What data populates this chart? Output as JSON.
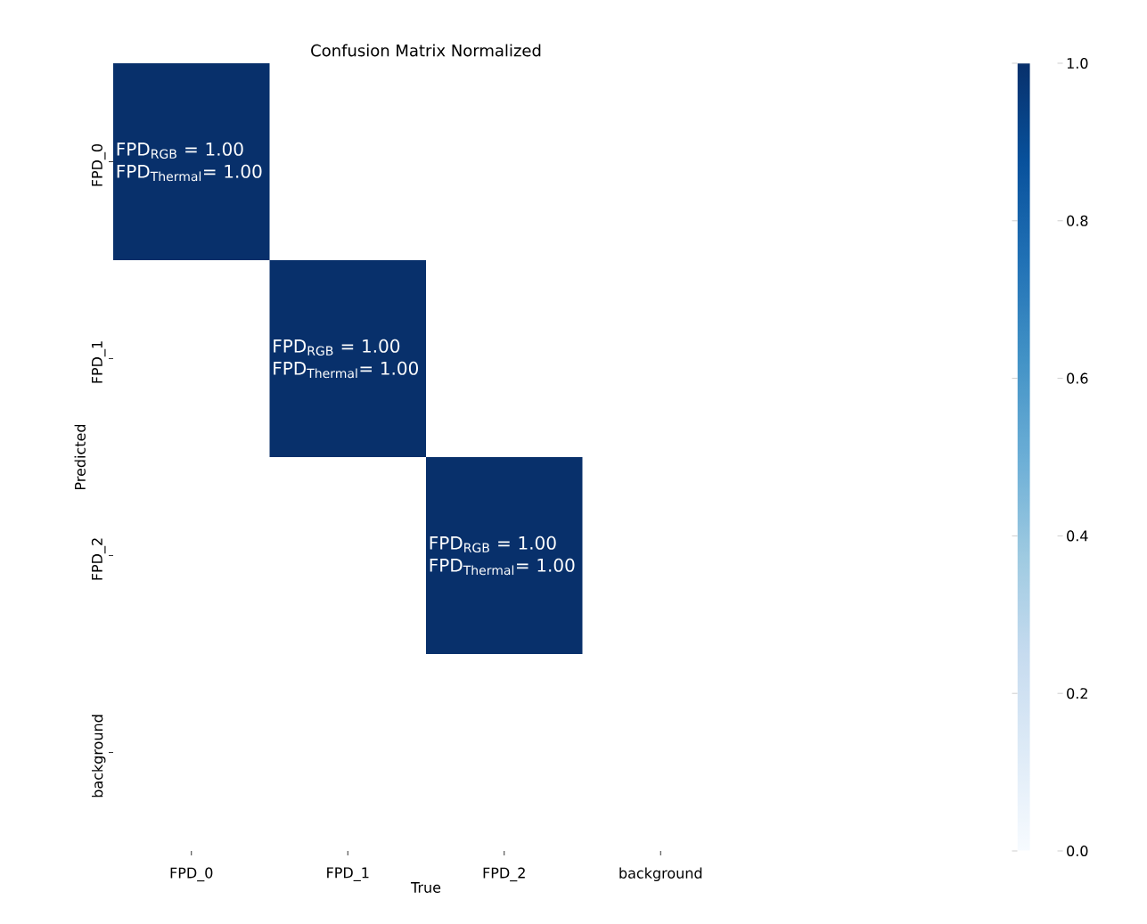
{
  "chart_data": {
    "type": "heatmap",
    "title": "Confusion Matrix Normalized",
    "xlabel": "True",
    "ylabel": "Predicted",
    "categories": [
      "FPD_0",
      "FPD_1",
      "FPD_2",
      "background"
    ],
    "y_categories": [
      "FPD_0",
      "FPD_1",
      "FPD_2",
      "background"
    ],
    "cells": [
      [
        1.0,
        null,
        null,
        null
      ],
      [
        null,
        1.0,
        null,
        null
      ],
      [
        null,
        null,
        1.0,
        null
      ],
      [
        null,
        null,
        null,
        null
      ]
    ],
    "cell_labels": [
      [
        "FPD$_{RGB}$ = 1.00 FPD$_{Thermal}$= 1.00",
        null,
        null,
        null
      ],
      [
        null,
        "FPD$_{RGB}$ = 1.00 FPD$_{Thermal}$= 1.00",
        null,
        null
      ],
      [
        null,
        null,
        "FPD$_{RGB}$ = 1.00 FPD$_{Thermal}$= 1.00",
        null
      ],
      [
        null,
        null,
        null,
        null
      ]
    ],
    "clim": [
      0,
      1
    ],
    "cticks": [
      {
        "value": 0,
        "label": "0.0"
      },
      {
        "value": 0.2,
        "label": "0.2"
      },
      {
        "value": 0.4,
        "label": "0.4"
      },
      {
        "value": 0.6,
        "label": "0.6"
      },
      {
        "value": 0.8,
        "label": "0.8"
      },
      {
        "value": 1,
        "label": "1.0"
      }
    ]
  }
}
